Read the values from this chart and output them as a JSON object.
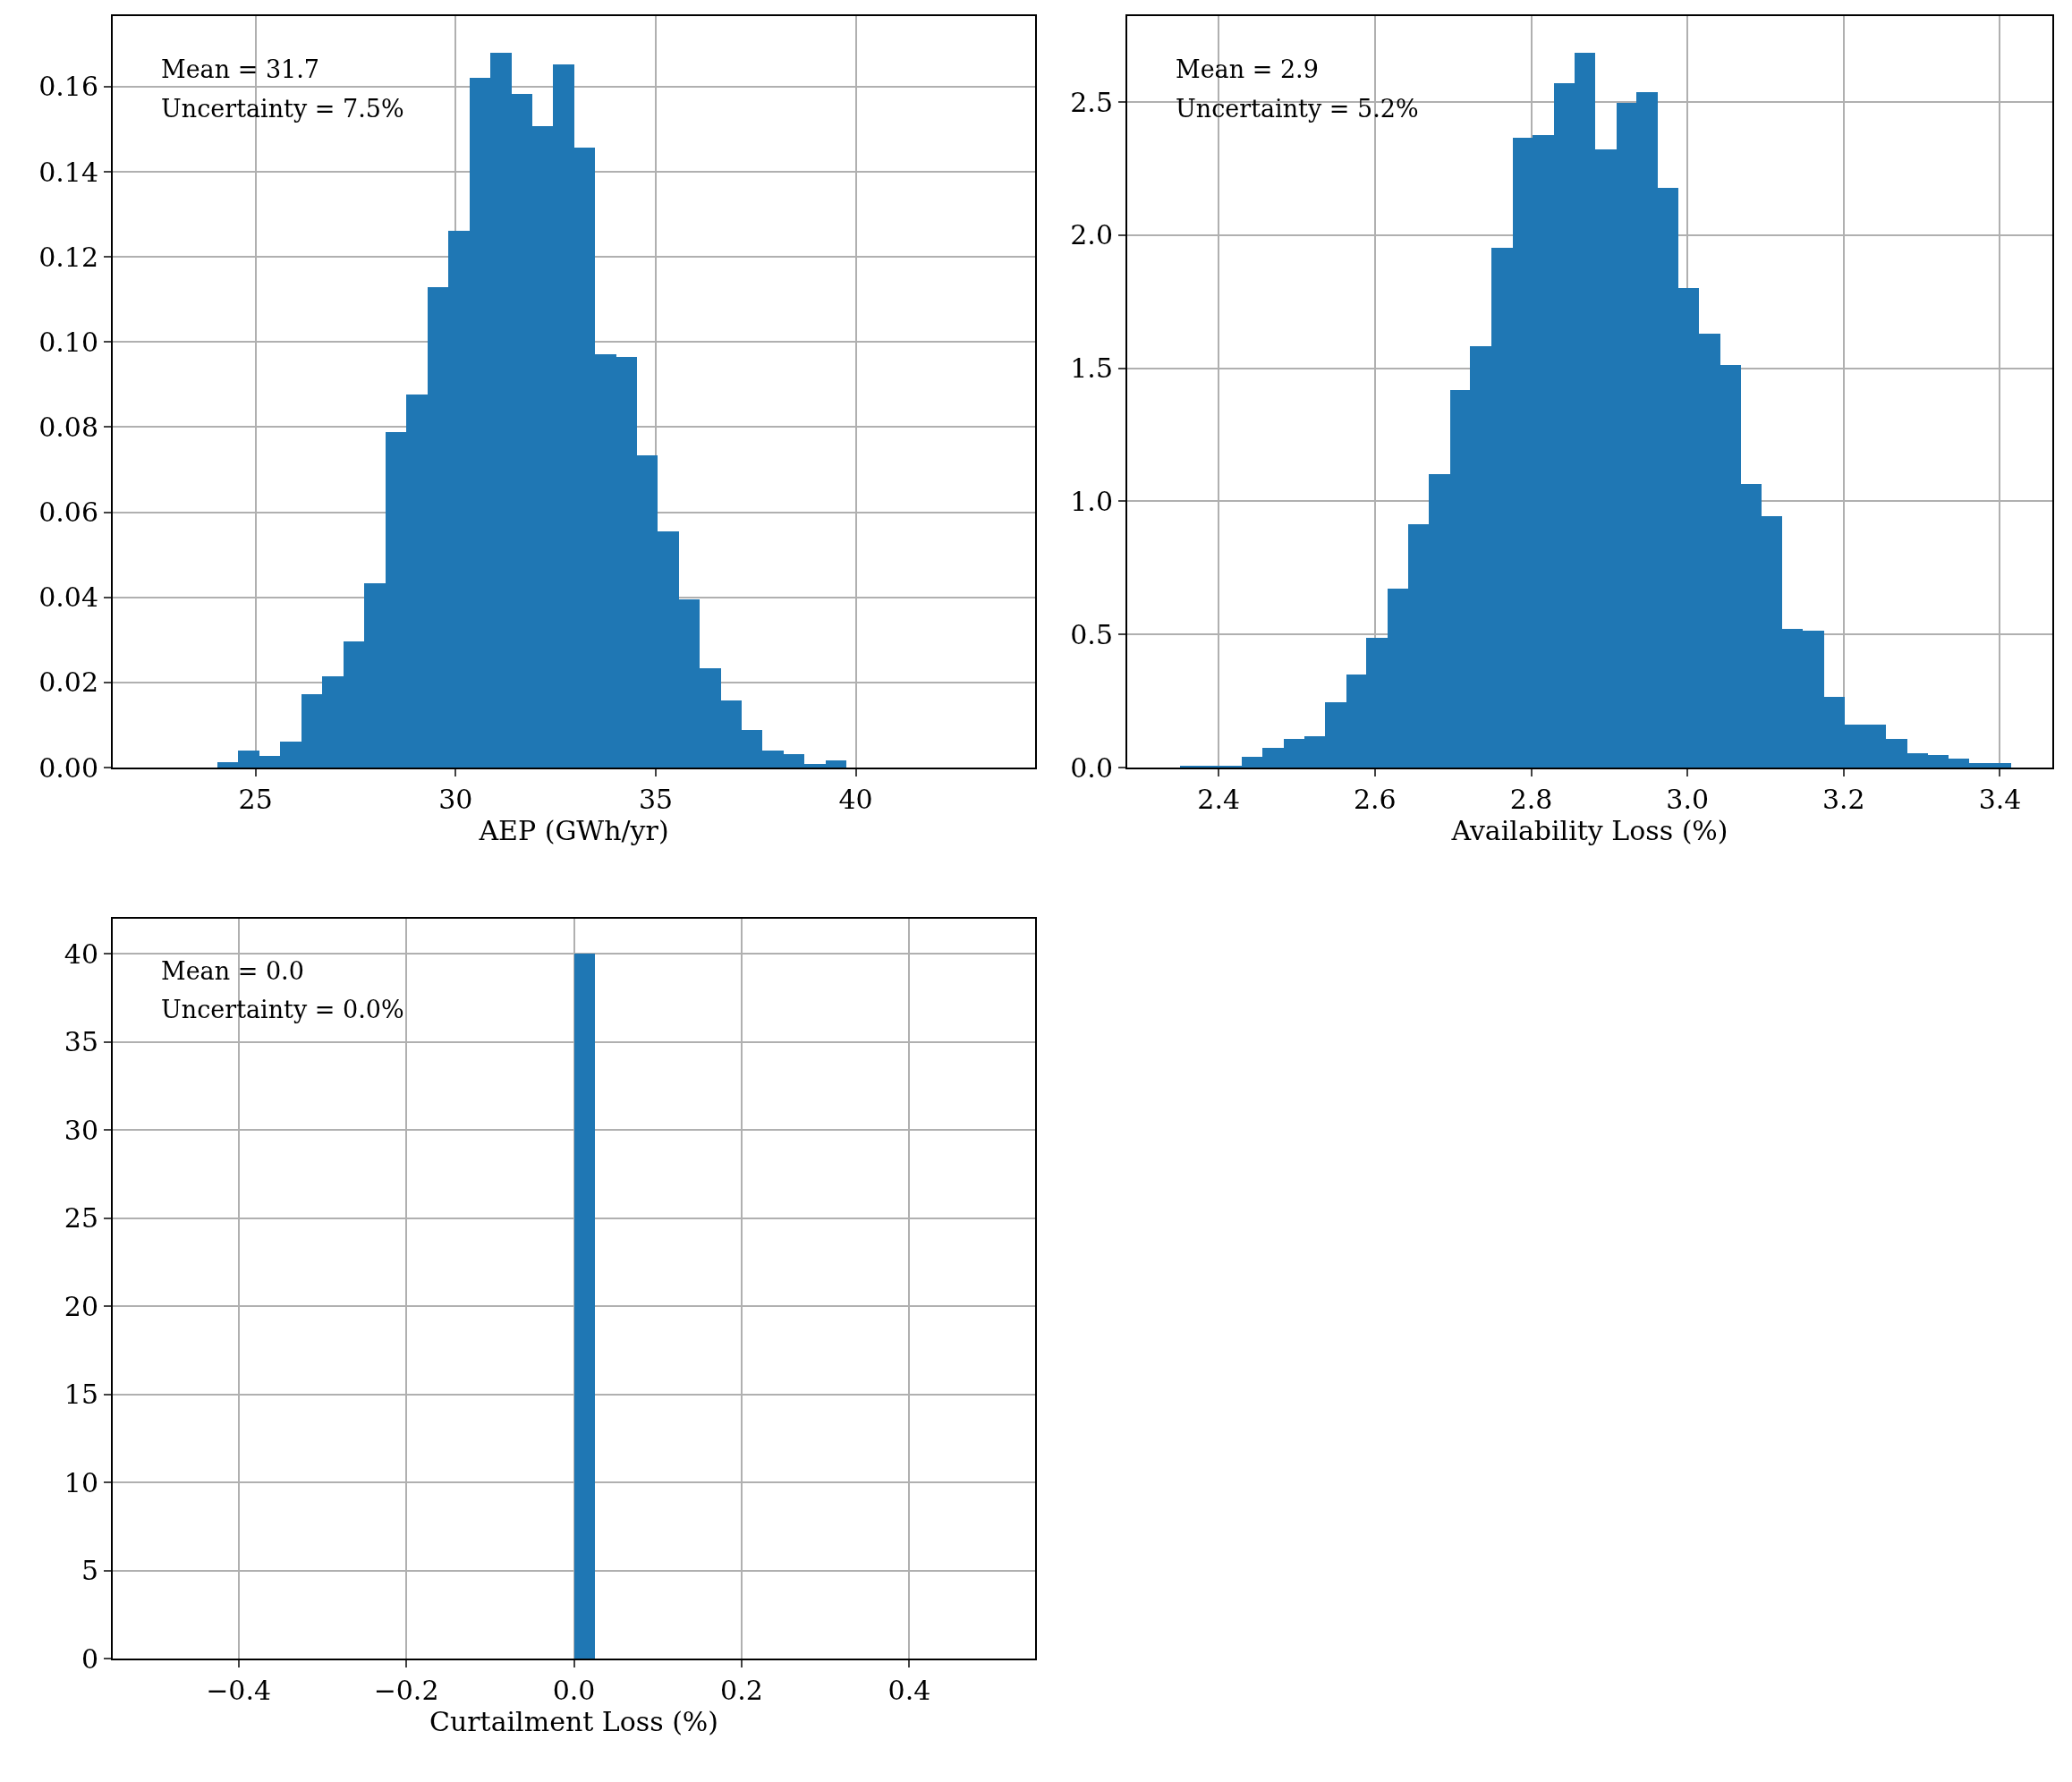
{
  "chart_data": [
    {
      "type": "histogram",
      "xlabel": "AEP (GWh/yr)",
      "color": "#1f77b4",
      "grid": true,
      "bins": [
        24.05,
        24.57,
        25.1,
        25.62,
        26.15,
        26.67,
        27.19,
        27.72,
        28.24,
        28.77,
        29.29,
        29.81,
        30.34,
        30.86,
        31.39,
        31.91,
        32.43,
        32.96,
        33.48,
        34.01,
        34.53,
        35.05,
        35.58,
        36.1,
        36.63,
        37.15,
        37.67,
        38.2,
        38.72,
        39.25,
        39.77
      ],
      "values": [
        0.0013,
        0.004,
        0.0028,
        0.0061,
        0.0173,
        0.0215,
        0.0296,
        0.0434,
        0.0788,
        0.0877,
        0.1128,
        0.1261,
        0.1621,
        0.1679,
        0.1583,
        0.1508,
        0.1653,
        0.1456,
        0.0971,
        0.0965,
        0.0734,
        0.0555,
        0.0396,
        0.0233,
        0.0158,
        0.0089,
        0.004,
        0.0032,
        0.0008,
        0.0017
      ],
      "xlim": [
        21.43,
        44.48
      ],
      "xticks": [
        25,
        30,
        35,
        40
      ],
      "ylim": [
        0,
        0.1766
      ],
      "yticks": [
        {
          "value": 0,
          "label": "0.00"
        },
        {
          "value": 0.02,
          "label": "0.02"
        },
        {
          "value": 0.04,
          "label": "0.04"
        },
        {
          "value": 0.06,
          "label": "0.06"
        },
        {
          "value": 0.08,
          "label": "0.08"
        },
        {
          "value": 0.1,
          "label": "0.10"
        },
        {
          "value": 0.12,
          "label": "0.12"
        },
        {
          "value": 0.14,
          "label": "0.14"
        },
        {
          "value": 0.16,
          "label": "0.16"
        }
      ],
      "annotations": [
        "Mean = 31.7",
        "Uncertainty = 7.5%"
      ]
    },
    {
      "type": "histogram",
      "xlabel": "Availability Loss (%)",
      "color": "#1f77b4",
      "grid": true,
      "bins": [
        2.35,
        2.377,
        2.403,
        2.43,
        2.456,
        2.483,
        2.51,
        2.536,
        2.563,
        2.589,
        2.616,
        2.643,
        2.669,
        2.696,
        2.722,
        2.749,
        2.776,
        2.802,
        2.829,
        2.855,
        2.882,
        2.909,
        2.935,
        2.962,
        2.988,
        3.015,
        3.042,
        3.068,
        3.095,
        3.121,
        3.148,
        3.175,
        3.201,
        3.228,
        3.254,
        3.281,
        3.308,
        3.334,
        3.361,
        3.387,
        3.414
      ],
      "values": [
        0.005,
        0.005,
        0.005,
        0.041,
        0.073,
        0.109,
        0.116,
        0.245,
        0.35,
        0.486,
        0.673,
        0.914,
        1.102,
        1.418,
        1.582,
        1.952,
        2.366,
        2.375,
        2.57,
        2.684,
        2.323,
        2.498,
        2.539,
        2.177,
        1.8,
        1.63,
        1.514,
        1.066,
        0.943,
        0.52,
        0.514,
        0.266,
        0.161,
        0.161,
        0.109,
        0.055,
        0.048,
        0.034,
        0.016,
        0.016
      ],
      "xlim": [
        2.283,
        3.467
      ],
      "xticks": [
        2.4,
        2.6,
        2.8,
        {
          "value": 3,
          "label": "3.0"
        },
        3.2,
        3.4
      ],
      "ylim": [
        0,
        2.823
      ],
      "yticks": [
        {
          "value": 0,
          "label": "0.0"
        },
        0.5,
        {
          "value": 1,
          "label": "1.0"
        },
        1.5,
        {
          "value": 2,
          "label": "2.0"
        },
        2.5
      ],
      "annotations": [
        "Mean = 2.9",
        "Uncertainty = 5.2%"
      ]
    },
    {
      "type": "histogram",
      "xlabel": "Curtailment Loss (%)",
      "color": "#1f77b4",
      "grid": true,
      "bins": [
        0,
        0.025
      ],
      "values": [
        40
      ],
      "xlim": [
        -0.55,
        0.55
      ],
      "xticks": [
        {
          "value": -0.4,
          "label": "−0.4"
        },
        {
          "value": -0.2,
          "label": "−0.2"
        },
        {
          "value": 0,
          "label": "0.0"
        },
        0.2,
        0.4
      ],
      "ylim": [
        0,
        42
      ],
      "yticks": [
        0,
        5,
        10,
        15,
        20,
        25,
        30,
        35,
        40
      ],
      "annotations": [
        "Mean = 0.0",
        "Uncertainty = 0.0%"
      ]
    }
  ]
}
